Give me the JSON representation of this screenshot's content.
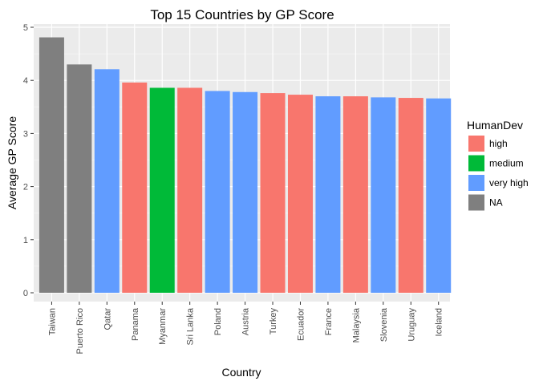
{
  "chart_data": {
    "type": "bar",
    "title": "Top 15 Countries by GP Score",
    "xlabel": "Country",
    "ylabel": "Average GP Score",
    "ylim": [
      0,
      5
    ],
    "yticks": [
      0,
      1,
      2,
      3,
      4,
      5
    ],
    "grid": true,
    "legend": {
      "title": "HumanDev",
      "placement": "right",
      "entries": [
        {
          "label": "high",
          "color": "#F8766D"
        },
        {
          "label": "medium",
          "color": "#00BA38"
        },
        {
          "label": "very high",
          "color": "#619CFF"
        },
        {
          "label": "NA",
          "color": "#7F7F7F"
        }
      ]
    },
    "categories": [
      "Taiwan",
      "Puerto Rico",
      "Qatar",
      "Panama",
      "Myanmar",
      "Sri Lanka",
      "Poland",
      "Austria",
      "Turkey",
      "Ecuador",
      "France",
      "Malaysia",
      "Slovenia",
      "Uruguay",
      "Iceland"
    ],
    "values": [
      4.81,
      4.3,
      4.21,
      3.96,
      3.86,
      3.86,
      3.8,
      3.78,
      3.76,
      3.73,
      3.7,
      3.7,
      3.68,
      3.67,
      3.66
    ],
    "groups": [
      "NA",
      "NA",
      "very high",
      "high",
      "medium",
      "high",
      "very high",
      "very high",
      "high",
      "high",
      "very high",
      "high",
      "very high",
      "high",
      "very high"
    ]
  }
}
